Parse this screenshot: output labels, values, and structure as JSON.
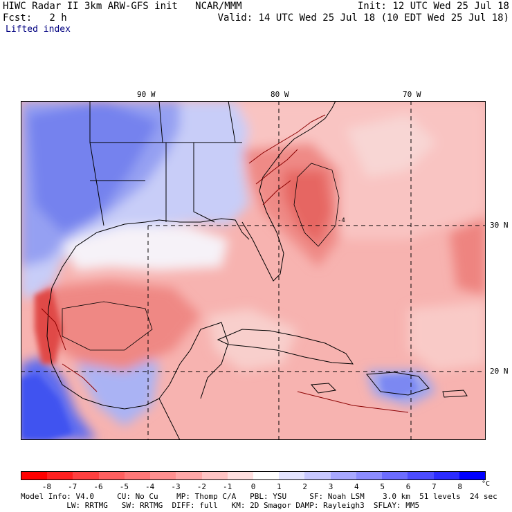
{
  "header": {
    "line1_left": "HIWC Radar II 3km ARW-GFS init   NCAR/MMM",
    "line1_right": "Init: 12 UTC Wed 25 Jul 18",
    "line2_left": "Fcst:   2 h",
    "line2_right": "Valid: 14 UTC Wed 25 Jul 18 (10 EDT Wed 25 Jul 18)",
    "field": "Lifted index"
  },
  "axes": {
    "lon_labels": [
      "90 W",
      "80 W",
      "70 W"
    ],
    "lat_labels": [
      "30 N",
      "20 N"
    ]
  },
  "colorbar": {
    "ticks": [
      "-8",
      "-7",
      "-6",
      "-5",
      "-4",
      "-3",
      "-2",
      "-1",
      "0",
      "1",
      "2",
      "3",
      "4",
      "5",
      "6",
      "7",
      "8"
    ],
    "unit": "°C",
    "colors": [
      "#ff0000",
      "#ff2020",
      "#ff4040",
      "#ff6060",
      "#ff7878",
      "#ff9090",
      "#ffa8a8",
      "#ffc4c4",
      "#ffe0e0",
      "#ffffff",
      "#e4e4ff",
      "#c8c8ff",
      "#a8a8ff",
      "#8c8cff",
      "#6c6cff",
      "#4c4cff",
      "#2c2cff",
      "#0000ff"
    ]
  },
  "map": {
    "colors": {
      "blue_strong": "#6e7cf0",
      "blue_mid": "#9fa8f4",
      "blue_light": "#d0d6fa",
      "white": "#f6f4f8",
      "pink_light": "#f9c4c2",
      "pink": "#f5a4a0",
      "red": "#ee7f7b",
      "red_strong": "#e25350",
      "coast": "#000000",
      "coast_red": "#8b0000"
    },
    "contour_label": "-4"
  },
  "footer": {
    "line1": "Model Info: V4.0     CU: No Cu    MP: Thomp C/A   PBL: YSU     SF: Noah LSM    3.0 km  51 levels  24 sec",
    "line2": "          LW: RRTMG   SW: RRTMG  DIFF: full   KM: 2D Smagor DAMP: Rayleigh3  SFLAY: MM5"
  }
}
